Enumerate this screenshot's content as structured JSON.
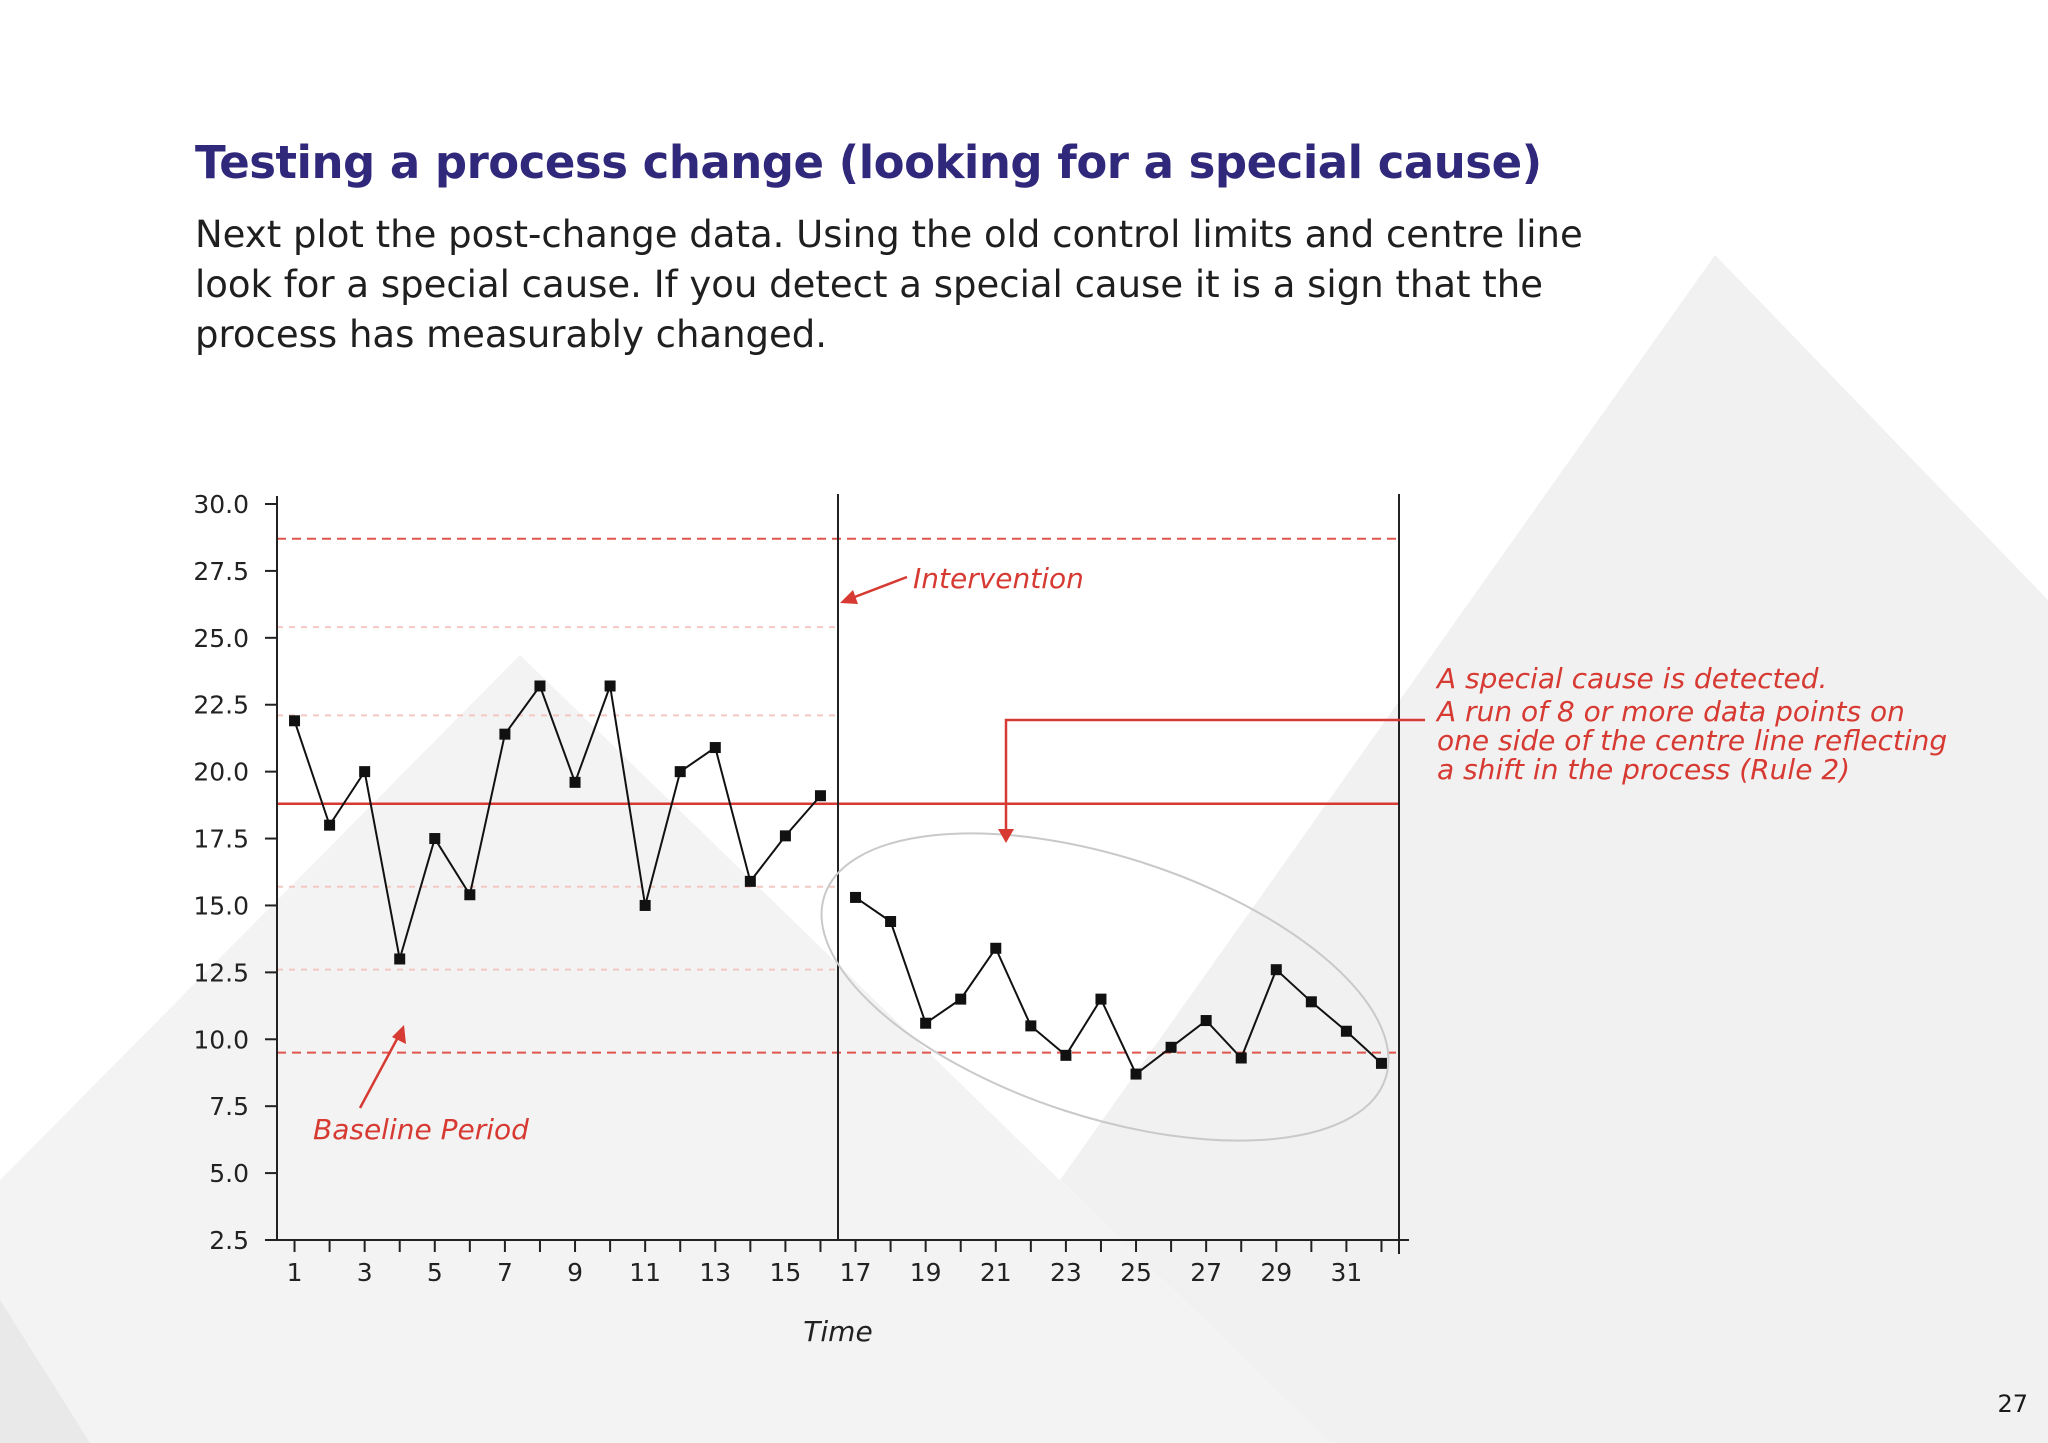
{
  "page": {
    "heading": "Testing a process change (looking for a special cause)",
    "intro_lines": [
      "Next plot the post-change data. Using the old control limits and centre line",
      "look for a special cause. If you detect a special cause it is a sign that the",
      "process has measurably changed."
    ],
    "page_number": "27"
  },
  "colors": {
    "heading": "#30287a",
    "annotation": "#d63a32",
    "series": "#111111",
    "background_shape": "#f2f2f2"
  },
  "chart_data": {
    "type": "line",
    "xlabel": "Time",
    "ylabel": "",
    "ylim": [
      2.5,
      30.0
    ],
    "xlim": [
      0.5,
      32.5
    ],
    "y_ticks": [
      "30.0",
      "27.5",
      "25.0",
      "22.5",
      "20.0",
      "17.5",
      "15.0",
      "12.5",
      "10.0",
      "7.5",
      "5.0",
      "2.5"
    ],
    "x_tick_labels": [
      "1",
      "3",
      "5",
      "7",
      "9",
      "11",
      "13",
      "15",
      "17",
      "19",
      "21",
      "23",
      "25",
      "27",
      "29",
      "31"
    ],
    "grid": false,
    "centre_line": 18.8,
    "upper_control_limit": 28.7,
    "lower_control_limit": 9.5,
    "upper_sigma_lines": [
      25.4,
      22.1
    ],
    "lower_sigma_lines": [
      15.7,
      12.6
    ],
    "intervention_x": 16.5,
    "series": [
      {
        "x": [
          1,
          2,
          3,
          4,
          5,
          6,
          7,
          8,
          9,
          10,
          11,
          12,
          13,
          14,
          15,
          16
        ],
        "values": [
          21.9,
          18.0,
          20.0,
          13.0,
          17.5,
          15.4,
          21.4,
          23.2,
          19.6,
          23.2,
          15.0,
          20.0,
          20.9,
          15.9,
          17.6,
          19.1
        ]
      },
      {
        "x": [
          17,
          18,
          19,
          20,
          21,
          22,
          23,
          24,
          25,
          26,
          27,
          28,
          29,
          30,
          31,
          32
        ],
        "values": [
          15.3,
          14.4,
          10.6,
          11.5,
          13.4,
          10.5,
          9.4,
          11.5,
          8.7,
          9.7,
          10.7,
          9.3,
          12.6,
          11.4,
          10.3,
          9.1
        ]
      }
    ],
    "annotations": {
      "intervention": "Intervention",
      "baseline": "Baseline Period",
      "special_cause_lines": [
        "A special cause is detected.",
        "A run of 8 or more data points on",
        "one side of the centre line reflecting",
        "a shift in the process (Rule 2)"
      ]
    }
  }
}
